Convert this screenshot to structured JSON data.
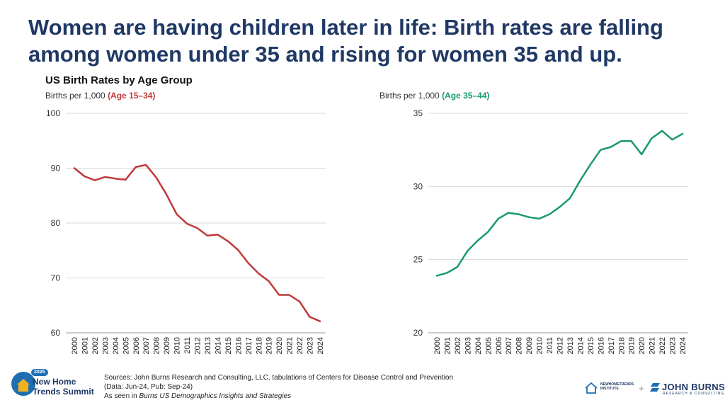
{
  "headline": "Women are having children later in life: Birth rates are falling among women under 35 and rising for women 35 and up.",
  "chart_title": "US Birth Rates by Age Group",
  "colors": {
    "headline": "#1f3864",
    "series_young": "#c0393b",
    "series_older": "#179a6e",
    "grid": "#d9d9d9"
  },
  "chart_data": [
    {
      "type": "line",
      "ylabel_prefix": "Births per 1,000 ",
      "ylabel_highlight": "(Age 15–34)",
      "ylim": [
        60,
        100
      ],
      "yticks": [
        60,
        70,
        80,
        90,
        100
      ],
      "grid": "horizontal",
      "x": [
        "2000",
        "2001",
        "2002",
        "2003",
        "2004",
        "2005",
        "2006",
        "2007",
        "2008",
        "2009",
        "2010",
        "2011",
        "2012",
        "2013",
        "2014",
        "2015",
        "2016",
        "2017",
        "2018",
        "2019",
        "2020",
        "2021",
        "2022",
        "2023",
        "2024"
      ],
      "series": [
        {
          "values": [
            90.0,
            88.5,
            87.8,
            88.4,
            88.1,
            87.9,
            90.2,
            90.6,
            88.3,
            85.2,
            81.6,
            79.9,
            79.1,
            77.7,
            77.9,
            76.7,
            75.1,
            72.7,
            70.8,
            69.4,
            66.9,
            66.9,
            65.7,
            62.9,
            62.1
          ]
        }
      ]
    },
    {
      "type": "line",
      "ylabel_prefix": "Births per 1,000 ",
      "ylabel_highlight": "(Age 35–44)",
      "ylim": [
        20,
        35
      ],
      "yticks": [
        20,
        25,
        30,
        35
      ],
      "grid": "horizontal",
      "x": [
        "2000",
        "2001",
        "2002",
        "2003",
        "2004",
        "2005",
        "2006",
        "2007",
        "2008",
        "2009",
        "2010",
        "2011",
        "2012",
        "2013",
        "2014",
        "2015",
        "2016",
        "2017",
        "2018",
        "2019",
        "2020",
        "2021",
        "2022",
        "2023",
        "2024"
      ],
      "series": [
        {
          "values": [
            23.9,
            24.1,
            24.5,
            25.6,
            26.3,
            26.9,
            27.8,
            28.2,
            28.1,
            27.9,
            27.8,
            28.1,
            28.6,
            29.2,
            30.4,
            31.5,
            32.5,
            32.7,
            33.1,
            33.1,
            32.2,
            33.3,
            33.8,
            33.2,
            33.6
          ]
        }
      ]
    }
  ],
  "sources": {
    "line1": "Sources: John Burns Research and Consulting, LLC, tabulations of Centers for Disease Control and Prevention",
    "line2": "(Data: Jun-24, Pub: Sep-24)",
    "line3_prefix": "As seen in ",
    "line3_italic": "Burns US Demographics Insights and Strategies"
  },
  "logos": {
    "summit_year": "2025",
    "summit_line1": "New Home",
    "summit_line2": "Trends Summit",
    "nht_line1": "NEWHOMETRENDS",
    "nht_line2": "INSTITUTE",
    "plus": "+",
    "jb_name": "JOHN BURNS",
    "jb_sub": "RESEARCH & CONSULTING"
  }
}
